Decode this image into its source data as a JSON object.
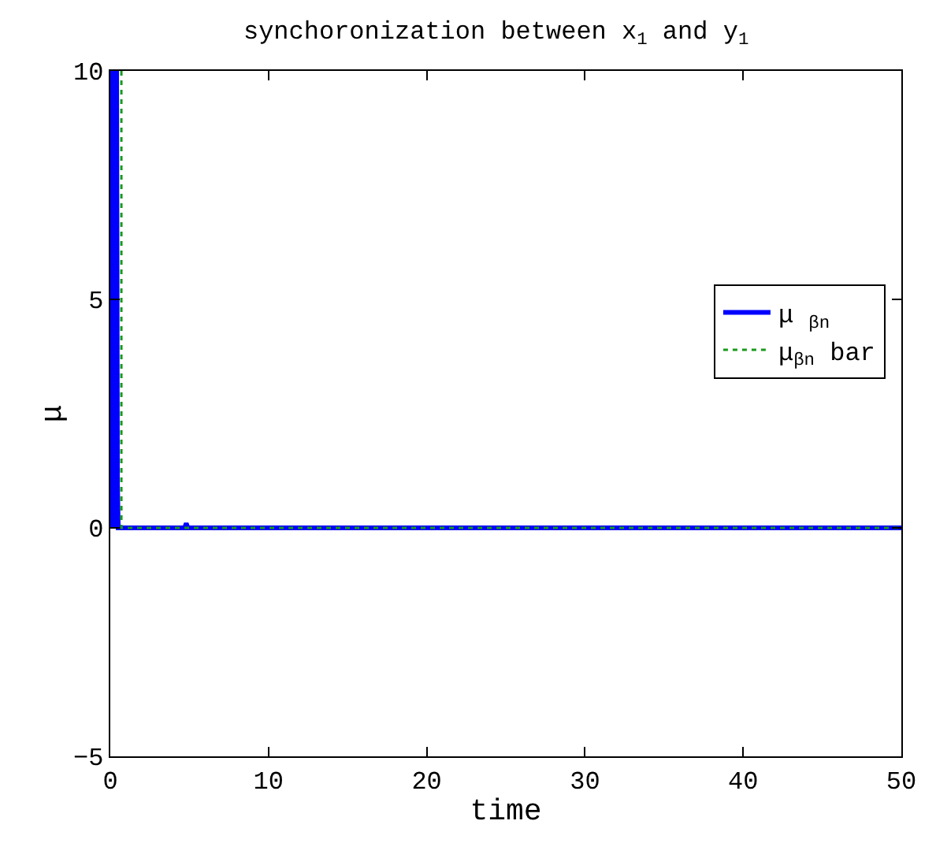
{
  "chart_data": {
    "type": "line",
    "title": "synchoronization between x$_{1}$ and y$_{1}$",
    "xlabel": "time",
    "ylabel": "μ",
    "xlim": [
      0,
      50
    ],
    "xticks": [
      0,
      10,
      20,
      30,
      40,
      50
    ],
    "ylim": [
      -5,
      10
    ],
    "yticks": [
      -5,
      0,
      5,
      10
    ],
    "grid": false,
    "legend": "right",
    "series": [
      {
        "name": "μ $_{βn}$",
        "color": "#0000ff",
        "line_style": "solid",
        "x": [
          0,
          0.1,
          0.15,
          0.2,
          0.25,
          0.3,
          0.35,
          0.4,
          0.45,
          0.5,
          0.6,
          4.7,
          4.8,
          4.9,
          50
        ],
        "values": [
          10,
          10,
          0,
          10,
          0,
          10,
          0,
          10,
          1,
          0,
          0,
          0,
          0.1,
          0,
          0
        ]
      },
      {
        "name": "μ$_{βn}$ bar",
        "color": "#1a9a1a",
        "line_style": "dotted",
        "x": [
          0.7,
          0.7,
          50
        ],
        "values": [
          10,
          0,
          0
        ]
      }
    ]
  }
}
